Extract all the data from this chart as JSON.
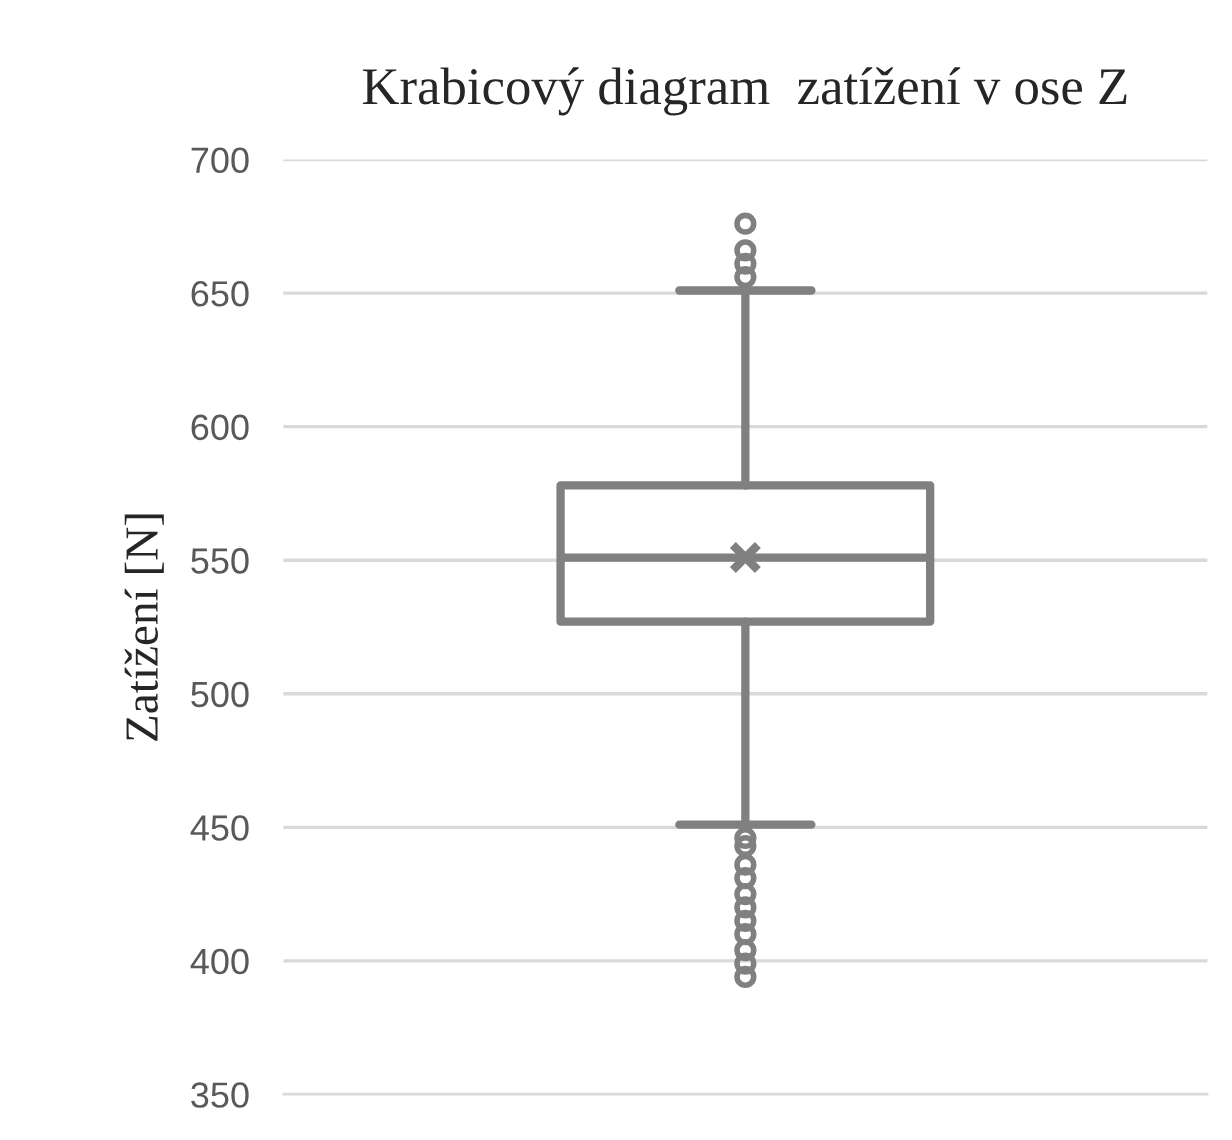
{
  "chart_data": {
    "type": "box",
    "title": "Krabicový diagram  zatížení v ose Z",
    "ylabel": "Zatížení [N]",
    "categories": [
      null
    ],
    "boxes": [
      {
        "low": 451,
        "q1": 527,
        "median": 551,
        "q3": 578,
        "high": 651,
        "mean": 551,
        "outliers": [
          676,
          666,
          661,
          656,
          446,
          443,
          436,
          431,
          425,
          420,
          415,
          410,
          404,
          399,
          394
        ]
      }
    ],
    "color": "#808080",
    "ylim": [
      350,
      700
    ],
    "yticks": [
      350,
      400,
      450,
      500,
      550,
      600,
      650,
      700
    ],
    "grid": "y",
    "legend": false
  }
}
